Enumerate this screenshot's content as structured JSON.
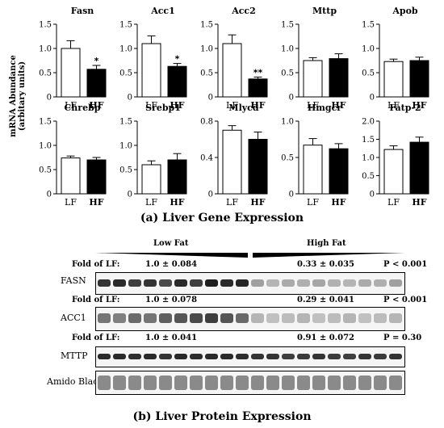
{
  "figure": {
    "y_axis_label_line1": "mRNA Abundance",
    "y_axis_label_line2": "(arbitary units)",
    "caption_a": "(a) Liver Gene Expression",
    "caption_b": "(b) Liver Protein Expression"
  },
  "chart_data": [
    {
      "type": "bar",
      "title": "Fasn",
      "categories": [
        "LF",
        "HF"
      ],
      "values": [
        1.0,
        0.57
      ],
      "errors": [
        0.16,
        0.08
      ],
      "significance": [
        "",
        "*"
      ],
      "ylim": [
        0,
        1.5
      ],
      "yticks": [
        "0",
        "0.5",
        "1.0",
        "1.5"
      ]
    },
    {
      "type": "bar",
      "title": "Acc1",
      "categories": [
        "LF",
        "HF"
      ],
      "values": [
        1.1,
        0.63
      ],
      "errors": [
        0.16,
        0.06
      ],
      "significance": [
        "",
        "*"
      ],
      "ylim": [
        0,
        1.5
      ],
      "yticks": [
        "0",
        "0.5",
        "1.0",
        "1.5"
      ]
    },
    {
      "type": "bar",
      "title": "Acc2",
      "categories": [
        "LF",
        "HF"
      ],
      "values": [
        1.1,
        0.37
      ],
      "errors": [
        0.18,
        0.04
      ],
      "significance": [
        "",
        "**"
      ],
      "ylim": [
        0,
        1.5
      ],
      "yticks": [
        "0",
        "0.5",
        "1.0",
        "1.5"
      ]
    },
    {
      "type": "bar",
      "title": "Mttp",
      "categories": [
        "LF",
        "HF"
      ],
      "values": [
        0.75,
        0.79
      ],
      "errors": [
        0.06,
        0.1
      ],
      "significance": [
        "",
        ""
      ],
      "ylim": [
        0,
        1.5
      ],
      "yticks": [
        "0",
        "0.5",
        "1.0",
        "1.5"
      ]
    },
    {
      "type": "bar",
      "title": "Apob",
      "categories": [
        "LF",
        "HF"
      ],
      "values": [
        0.73,
        0.75
      ],
      "errors": [
        0.05,
        0.07
      ],
      "significance": [
        "",
        ""
      ],
      "ylim": [
        0,
        1.5
      ],
      "yticks": [
        "0",
        "0.5",
        "1.0",
        "1.5"
      ]
    },
    {
      "type": "bar",
      "title": "Chrebp",
      "categories": [
        "LF",
        "HF"
      ],
      "values": [
        0.74,
        0.7
      ],
      "errors": [
        0.04,
        0.05
      ],
      "significance": [
        "",
        ""
      ],
      "ylim": [
        0,
        1.5
      ],
      "yticks": [
        "0",
        "0.5",
        "1.0",
        "1.5"
      ]
    },
    {
      "type": "bar",
      "title": "Srebp1",
      "categories": [
        "LF",
        "HF"
      ],
      "values": [
        0.6,
        0.7
      ],
      "errors": [
        0.08,
        0.13
      ],
      "significance": [
        "",
        ""
      ],
      "ylim": [
        0,
        1.5
      ],
      "yticks": [
        "0",
        "0.5",
        "1.0",
        "1.5"
      ]
    },
    {
      "type": "bar",
      "title": "Mlycd",
      "categories": [
        "LF",
        "HF"
      ],
      "values": [
        0.7,
        0.6
      ],
      "errors": [
        0.05,
        0.08
      ],
      "significance": [
        "",
        ""
      ],
      "ylim": [
        0,
        0.8
      ],
      "yticks": [
        "0",
        "0.4",
        "0.8"
      ]
    },
    {
      "type": "bar",
      "title": "Hmgcr",
      "categories": [
        "LF",
        "HF"
      ],
      "values": [
        0.67,
        0.62
      ],
      "errors": [
        0.09,
        0.07
      ],
      "significance": [
        "",
        ""
      ],
      "ylim": [
        0,
        1.0
      ],
      "yticks": [
        "0",
        "0.5",
        "1.0"
      ]
    },
    {
      "type": "bar",
      "title": "Fatp-2",
      "categories": [
        "LF",
        "HF"
      ],
      "values": [
        1.22,
        1.42
      ],
      "errors": [
        0.1,
        0.14
      ],
      "significance": [
        "",
        ""
      ],
      "ylim": [
        0,
        2.0
      ],
      "yticks": [
        "0",
        "0.5",
        "1.0",
        "1.5",
        "2.0"
      ]
    }
  ],
  "western": {
    "group_low": "Low Fat",
    "group_high": "High Fat",
    "fold_label": "Fold of LF:",
    "rows": [
      {
        "protein": "FASN",
        "lf": "1.0 ± 0.084",
        "hf": "0.33 ± 0.035",
        "p": "P < 0.001"
      },
      {
        "protein": "ACC1",
        "lf": "1.0 ± 0.078",
        "hf": "0.29 ± 0.041",
        "p": "P < 0.001"
      },
      {
        "protein": "MTTP",
        "lf": "1.0 ± 0.041",
        "hf": "0.91 ± 0.072",
        "p": "P = 0.30"
      }
    ],
    "loading_control": "Amido Black"
  }
}
